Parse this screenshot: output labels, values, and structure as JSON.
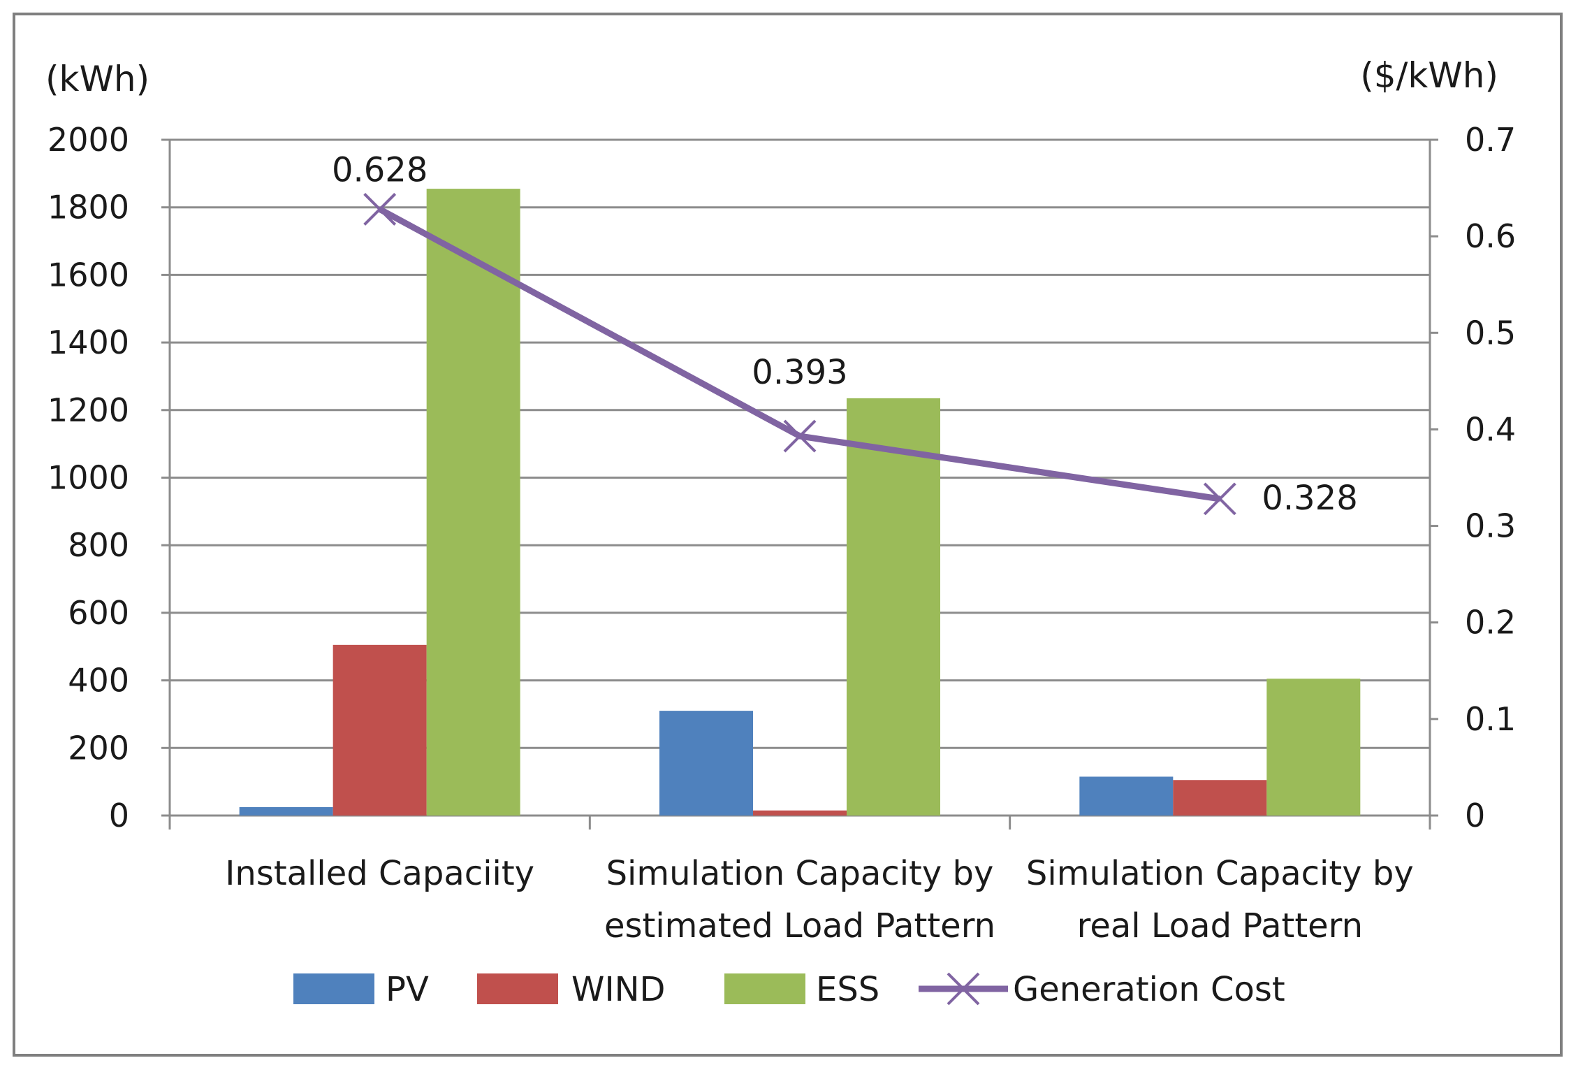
{
  "chart_data": {
    "type": "bar+line",
    "y_left_unit": "(kWh)",
    "y_right_unit": "($/kWh)",
    "y_left_range": [
      0,
      2000
    ],
    "y_left_ticks": [
      "0",
      "200",
      "400",
      "600",
      "800",
      "1000",
      "1200",
      "1400",
      "1600",
      "1800",
      "2000"
    ],
    "y_right_range": [
      0,
      0.7
    ],
    "y_right_ticks": [
      "0",
      "0.1",
      "0.2",
      "0.3",
      "0.4",
      "0.5",
      "0.6",
      "0.7"
    ],
    "grid": true,
    "categories": [
      [
        "Installed Capaciity"
      ],
      [
        "Simulation Capacity by",
        "estimated Load Pattern"
      ],
      [
        "Simulation Capacity by",
        "real Load Pattern"
      ]
    ],
    "series": [
      {
        "name": "PV",
        "type": "bar",
        "axis": "left",
        "color": "#4f81bd",
        "values": [
          25,
          310,
          115
        ]
      },
      {
        "name": "WIND",
        "type": "bar",
        "axis": "left",
        "color": "#c0504d",
        "values": [
          505,
          15,
          105
        ]
      },
      {
        "name": "ESS",
        "type": "bar",
        "axis": "left",
        "color": "#9bbb59",
        "values": [
          1855,
          1235,
          405
        ]
      },
      {
        "name": "Generation Cost",
        "type": "line",
        "axis": "right",
        "color": "#8064a2",
        "values": [
          0.628,
          0.393,
          0.328
        ],
        "labels": [
          "0.628",
          "0.393",
          "0.328"
        ]
      }
    ],
    "legend_position": "bottom"
  }
}
